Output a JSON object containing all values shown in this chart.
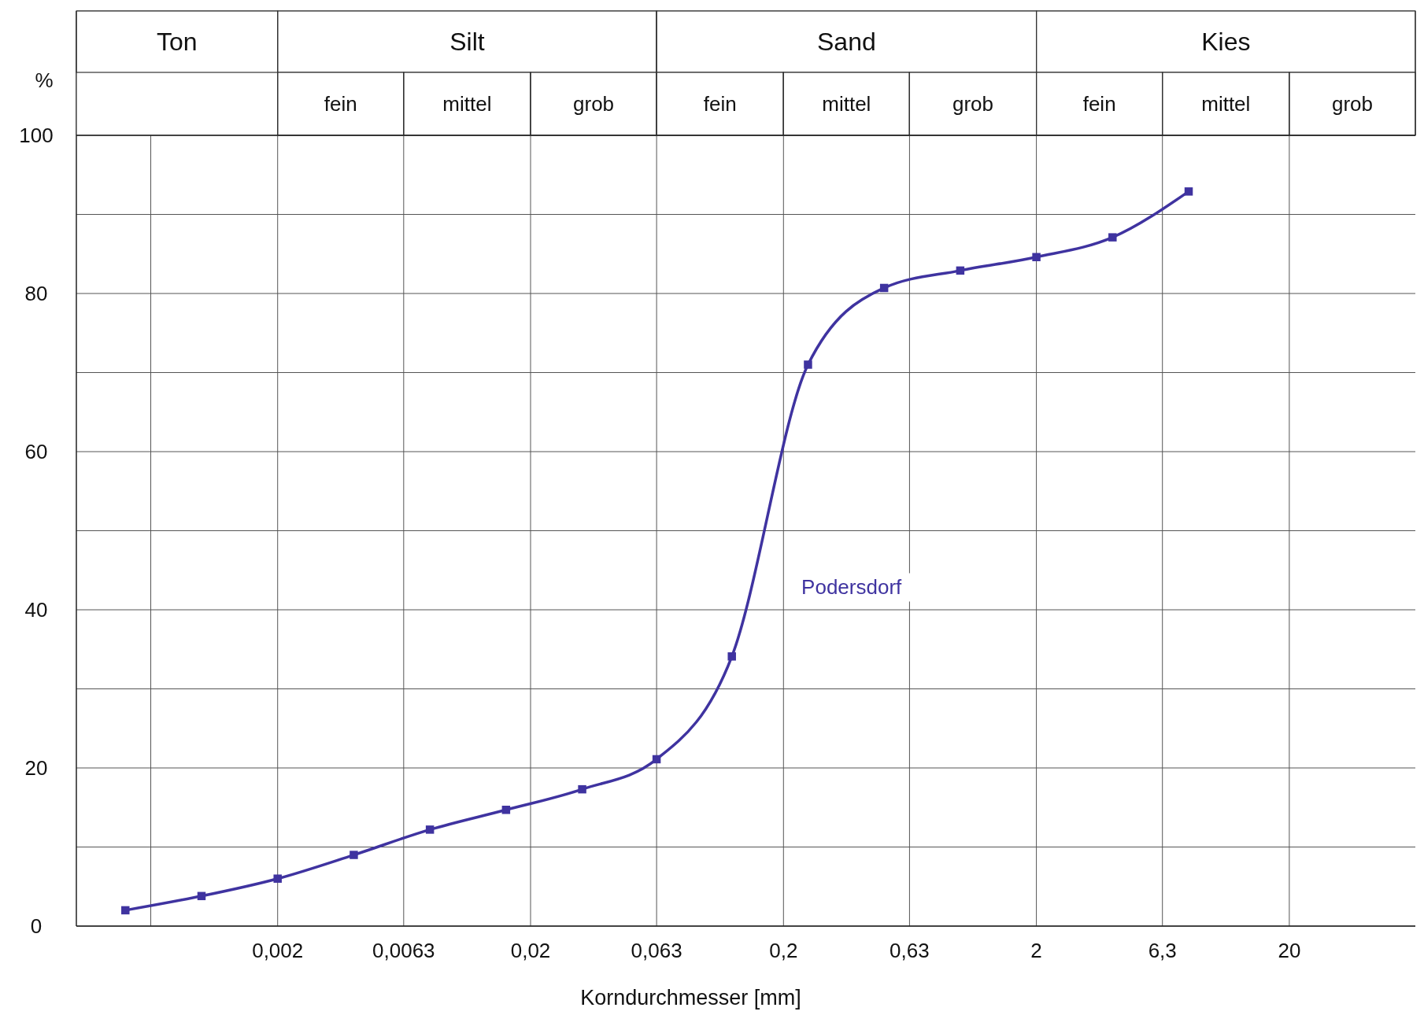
{
  "chart_data": {
    "type": "line",
    "xlabel": "Korndurchmesser [mm]",
    "ylabel": "%",
    "log": "x",
    "grid": true,
    "marker": "square",
    "line_style": "solid",
    "xlim": [
      0.00032,
      63
    ],
    "ylim": [
      0,
      100
    ],
    "xticks": [
      {
        "value": 0.00063,
        "label": null
      },
      {
        "value": 0.002,
        "label": "0,002"
      },
      {
        "value": 0.0063,
        "label": "0,0063"
      },
      {
        "value": 0.02,
        "label": "0,02"
      },
      {
        "value": 0.063,
        "label": "0,063"
      },
      {
        "value": 0.2,
        "label": "0,2"
      },
      {
        "value": 0.63,
        "label": "0,63"
      },
      2,
      {
        "value": 6.3,
        "label": "6,3"
      },
      20
    ],
    "yticks": [
      0,
      {
        "value": 10,
        "label": null
      },
      20,
      {
        "value": 30,
        "label": null
      },
      40,
      {
        "value": 50,
        "label": null
      },
      60,
      {
        "value": 70,
        "label": null
      },
      80,
      {
        "value": 90,
        "label": null
      },
      100
    ],
    "bands": [
      {
        "axis": "x",
        "from": 0.00032,
        "to": 0.002,
        "label": "Ton",
        "color": "#ffffff"
      },
      {
        "axis": "x",
        "from": 0.002,
        "to": 0.063,
        "label": "Silt",
        "color": "#ffffff"
      },
      {
        "axis": "x",
        "from": 0.063,
        "to": 2,
        "label": "Sand",
        "color": "#ffffff"
      },
      {
        "axis": "x",
        "from": 2,
        "to": 63,
        "label": "Kies",
        "color": "#ffffff"
      },
      {
        "axis": "x",
        "from": 0.002,
        "to": 0.0063,
        "label": "fein",
        "color": "#ffffff"
      },
      {
        "axis": "x",
        "from": 0.0063,
        "to": 0.02,
        "label": "mittel",
        "color": "#ffffff"
      },
      {
        "axis": "x",
        "from": 0.02,
        "to": 0.063,
        "label": "grob",
        "color": "#ffffff"
      },
      {
        "axis": "x",
        "from": 0.063,
        "to": 0.2,
        "label": "fein",
        "color": "#ffffff"
      },
      {
        "axis": "x",
        "from": 0.2,
        "to": 0.63,
        "label": "mittel",
        "color": "#ffffff"
      },
      {
        "axis": "x",
        "from": 0.63,
        "to": 2,
        "label": "grob",
        "color": "#ffffff"
      },
      {
        "axis": "x",
        "from": 2,
        "to": 6.3,
        "label": "fein",
        "color": "#ffffff"
      },
      {
        "axis": "x",
        "from": 6.3,
        "to": 20,
        "label": "mittel",
        "color": "#ffffff"
      },
      {
        "axis": "x",
        "from": 20,
        "to": 63,
        "label": "grob",
        "color": "#ffffff"
      }
    ],
    "series": [
      {
        "name": "Podersdorf",
        "color": "#3f33a0",
        "x": [
          0.0005,
          0.001,
          0.002,
          0.004,
          0.008,
          0.016,
          0.032,
          0.063,
          0.125,
          0.25,
          0.5,
          1,
          2,
          4,
          8
        ],
        "values": [
          2,
          3.8,
          6,
          9,
          12.2,
          14.7,
          17.3,
          21.1,
          34.1,
          71,
          80.7,
          82.9,
          84.6,
          87.1,
          92.9
        ]
      }
    ]
  }
}
